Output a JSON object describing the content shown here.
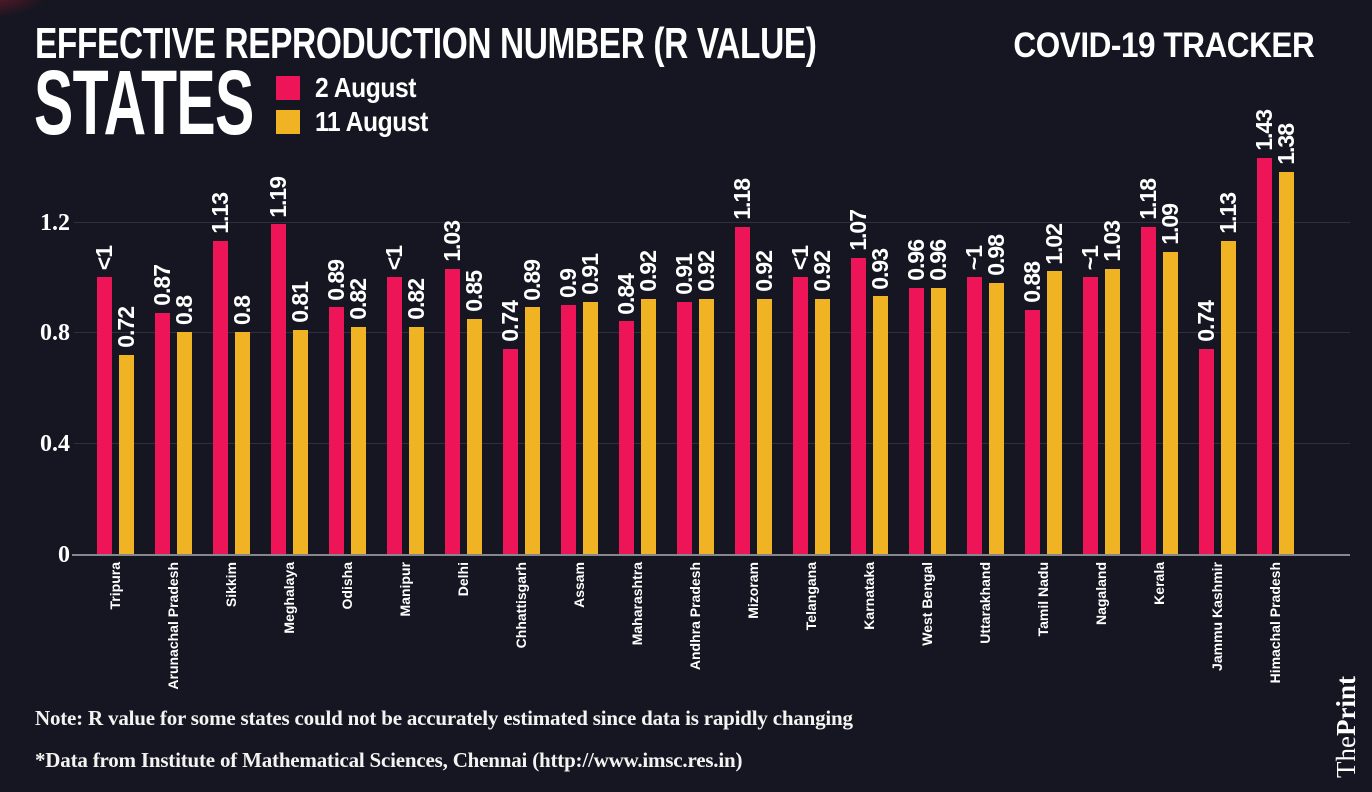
{
  "header": {
    "title": "EFFECTIVE REPRODUCTION NUMBER (R VALUE)",
    "tracker": "COVID-19 TRACKER",
    "subtitle": "STATES"
  },
  "legend": [
    {
      "label": "2 August",
      "color": "#ed1558"
    },
    {
      "label": "11 August",
      "color": "#f0b324"
    }
  ],
  "notes": {
    "line1": "Note: R value for some states could not be accurately estimated since data is rapidly changing",
    "line2": "*Data from Institute of Mathematical Sciences, Chennai (http://www.imsc.res.in)"
  },
  "brand": {
    "the": "The",
    "print": "Print"
  },
  "colors": {
    "background": "#151621",
    "pink": "#ed1558",
    "yellow": "#f0b324",
    "gridline": "#2f303b",
    "axis": "#85868e",
    "text": "#ffffff"
  },
  "chart_data": {
    "type": "bar",
    "title": "EFFECTIVE REPRODUCTION NUMBER (R VALUE) — STATES",
    "xlabel": "",
    "ylabel": "",
    "ylim": [
      0,
      1.45
    ],
    "yticks": [
      0,
      0.4,
      0.8,
      1.2
    ],
    "grid": true,
    "legend_position": "top-left",
    "categories": [
      "Tripura",
      "Arunachal Pradesh",
      "Sikkim",
      "Meghalaya",
      "Odisha",
      "Manipur",
      "Delhi",
      "Chhattisgarh",
      "Assam",
      "Maharashtra",
      "Andhra Pradesh",
      "Mizoram",
      "Telangana",
      "Karnataka",
      "West Bengal",
      "Uttarakhand",
      "Tamil Nadu",
      "Nagaland",
      "Kerala",
      "Jammu Kashmir",
      "Himachal Pradesh"
    ],
    "series": [
      {
        "name": "2 August",
        "color": "#ed1558",
        "labels": [
          "<1",
          "0.87",
          "1.13",
          "1.19",
          "0.89",
          "<1",
          "1.03",
          "0.74",
          "0.9",
          "0.84",
          "0.91",
          "1.18",
          "<1",
          "1.07",
          "0.96",
          "~1",
          "0.88",
          "~1",
          "1.18",
          "0.74",
          "1.43"
        ],
        "values": [
          1.0,
          0.87,
          1.13,
          1.19,
          0.89,
          1.0,
          1.03,
          0.74,
          0.9,
          0.84,
          0.91,
          1.18,
          1.0,
          1.07,
          0.96,
          1.0,
          0.88,
          1.0,
          1.18,
          0.74,
          1.43
        ]
      },
      {
        "name": "11 August",
        "color": "#f0b324",
        "labels": [
          "0.72",
          "0.8",
          "0.8",
          "0.81",
          "0.82",
          "0.82",
          "0.85",
          "0.89",
          "0.91",
          "0.92",
          "0.92",
          "0.92",
          "0.92",
          "0.93",
          "0.96",
          "0.98",
          "1.02",
          "1.03",
          "1.09",
          "1.13",
          "1.38"
        ],
        "values": [
          0.72,
          0.8,
          0.8,
          0.81,
          0.82,
          0.82,
          0.85,
          0.89,
          0.91,
          0.92,
          0.92,
          0.92,
          0.92,
          0.93,
          0.96,
          0.98,
          1.02,
          1.03,
          1.09,
          1.13,
          1.38
        ]
      }
    ]
  }
}
